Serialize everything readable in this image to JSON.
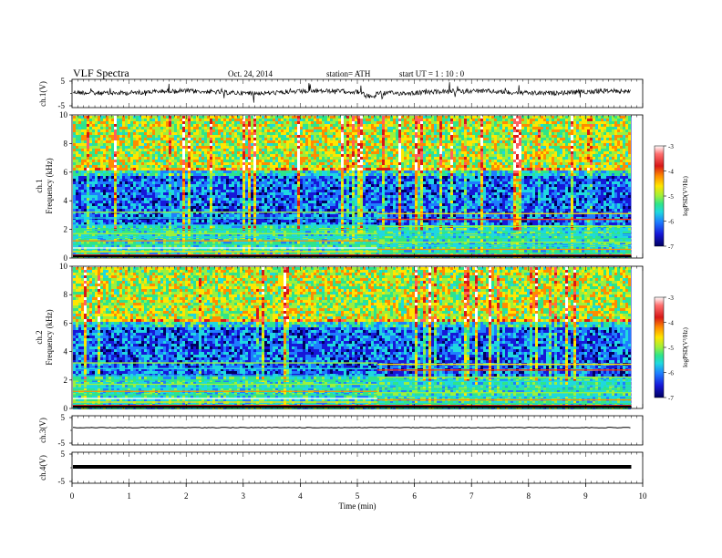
{
  "header": {
    "title": "VLF  Spectra",
    "date": "Oct. 24, 2014",
    "station": "station= ATH",
    "start": "start  UT  =   1  : 10 : 0"
  },
  "colorbar": {
    "label": "logPSD(V²/Hz)",
    "ticks": [
      "-3",
      "-4",
      "-5",
      "-6",
      "-7"
    ],
    "colors": [
      "#ffffff",
      "#ff6060",
      "#d81818",
      "#ff8c00",
      "#ffe600",
      "#9cf03c",
      "#2ee58a",
      "#1fd8e0",
      "#1e7dff",
      "#1717d8",
      "#000060"
    ]
  },
  "chart_data": [
    {
      "type": "line",
      "panel": "ch1-waveform",
      "ylabel": "ch.1(V)",
      "ylim": [
        -5,
        5
      ],
      "yticks": [
        "5",
        "-5"
      ],
      "xlim": [
        0,
        10
      ],
      "series": [
        {
          "name": "",
          "values_description_omitted": true
        }
      ]
    },
    {
      "type": "heatmap",
      "panel": "ch1-spectrogram",
      "ylabel": "ch.1\nFrequency (kHz)",
      "ylim": [
        0,
        10
      ],
      "yticks": [
        "0",
        "2",
        "4",
        "6",
        "8",
        "10"
      ],
      "xlim": [
        0,
        9.8
      ],
      "zlim": [
        -7,
        -3
      ]
    },
    {
      "type": "heatmap",
      "panel": "ch2-spectrogram",
      "ylabel": "ch.2\nFrequency (kHz)",
      "ylim": [
        0,
        10
      ],
      "yticks": [
        "0",
        "2",
        "4",
        "6",
        "8",
        "10"
      ],
      "xlim": [
        0,
        9.8
      ],
      "zlim": [
        -7,
        -3
      ]
    },
    {
      "type": "line",
      "panel": "ch3-waveform",
      "ylabel": "ch.3(V)",
      "ylim": [
        -5,
        5
      ],
      "yticks": [
        "5",
        "-5"
      ],
      "xlim": [
        0,
        10
      ]
    },
    {
      "type": "line",
      "panel": "ch4-waveform",
      "ylabel": "ch.4(V)",
      "ylim": [
        -5,
        5
      ],
      "yticks": [
        "5",
        "-5"
      ],
      "xlim": [
        0,
        10
      ]
    }
  ],
  "xaxis": {
    "label": "Time  (min)",
    "ticks": [
      "0",
      "1",
      "2",
      "3",
      "4",
      "5",
      "6",
      "7",
      "8",
      "9",
      "10"
    ]
  }
}
